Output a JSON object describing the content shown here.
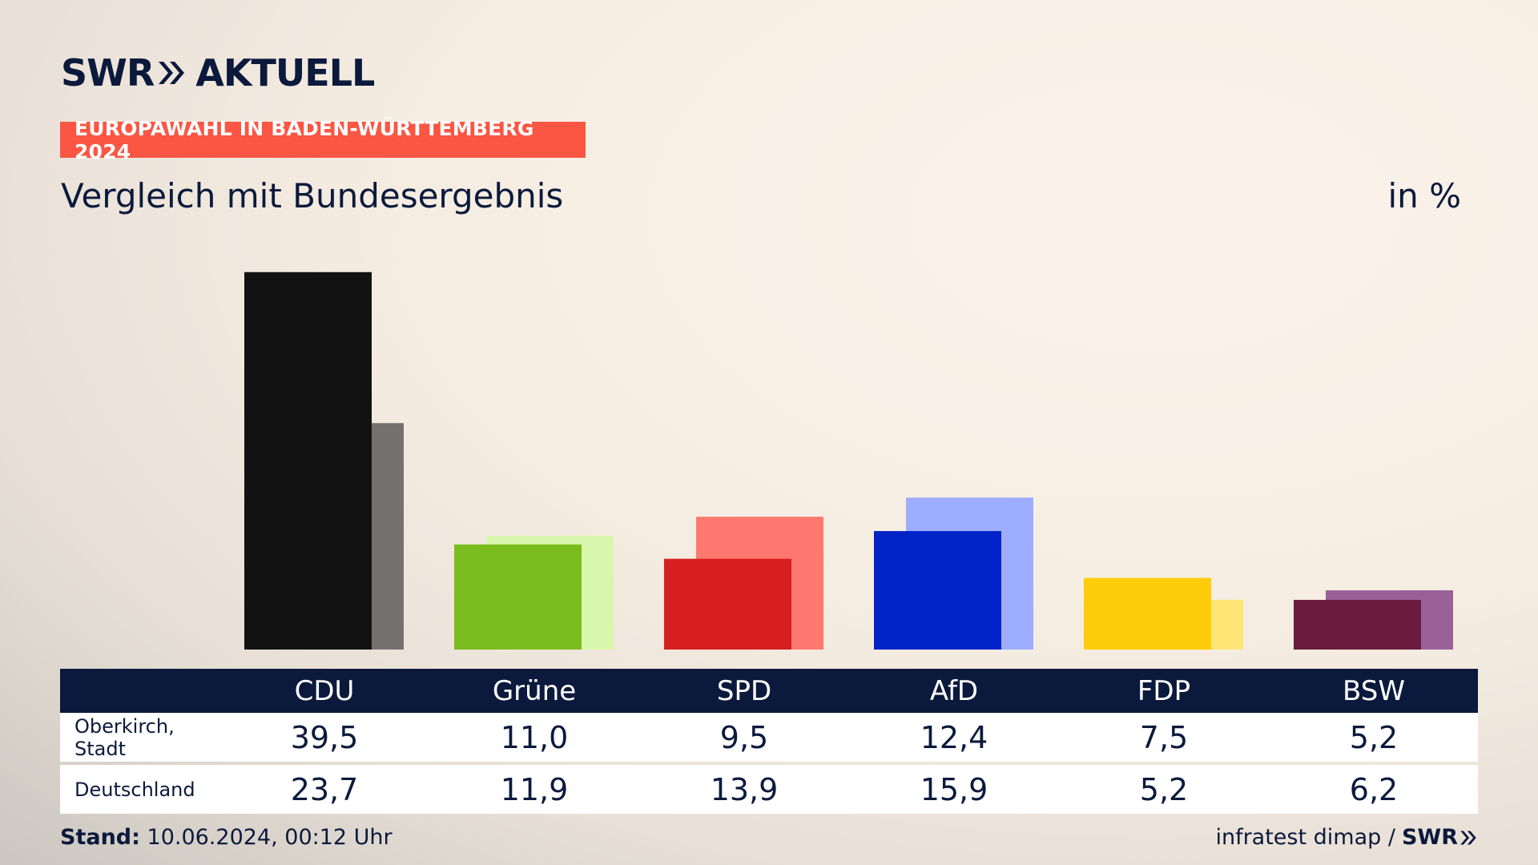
{
  "brand": {
    "logo_left": "SWR",
    "logo_right": "AKTUELL"
  },
  "tag": "EUROPAWAHL IN BADEN-WÜRTTEMBERG 2024",
  "subtitle": "Vergleich mit Bundesergebnis",
  "unit": "in %",
  "colors": {
    "navy": "#0b1a3c",
    "tag": "#fa5643"
  },
  "chart_data": {
    "type": "bar",
    "categories": [
      "CDU",
      "Grüne",
      "SPD",
      "AfD",
      "FDP",
      "BSW"
    ],
    "series": [
      {
        "name": "Oberkirch, Stadt",
        "values": [
          39.5,
          11.0,
          9.5,
          12.4,
          7.5,
          5.2
        ],
        "colors": [
          "#121212",
          "#79bc1d",
          "#d81f1f",
          "#0023c8",
          "#ffcc0b",
          "#6a1b3e"
        ]
      },
      {
        "name": "Deutschland",
        "values": [
          23.7,
          11.9,
          13.9,
          15.9,
          5.2,
          6.2
        ],
        "colors": [
          "#747270",
          "#d8f7ac",
          "#ff7870",
          "#9dadff",
          "#ffe573",
          "#9a6199"
        ]
      }
    ],
    "ylim": [
      0,
      40
    ],
    "grid": false
  },
  "table": {
    "headers": [
      "CDU",
      "Grüne",
      "SPD",
      "AfD",
      "FDP",
      "BSW"
    ],
    "rows": [
      {
        "label": "Oberkirch, Stadt",
        "values": [
          "39,5",
          "11,0",
          "9,5",
          "12,4",
          "7,5",
          "5,2"
        ]
      },
      {
        "label": "Deutschland",
        "values": [
          "23,7",
          "11,9",
          "13,9",
          "15,9",
          "5,2",
          "6,2"
        ]
      }
    ]
  },
  "footer": {
    "stand_label": "Stand:",
    "stand_value": "10.06.2024, 00:12 Uhr",
    "source": "infratest dimap /",
    "source_brand": "SWR"
  }
}
